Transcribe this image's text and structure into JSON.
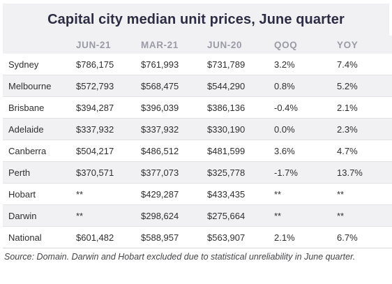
{
  "title": "Capital city median unit prices, June quarter",
  "columns": [
    "",
    "JUN-21",
    "MAR-21",
    "JUN-20",
    "QOQ",
    "YOY"
  ],
  "rows": [
    {
      "city": "Sydney",
      "jun21": "$786,175",
      "mar21": "$761,993",
      "jun20": "$731,789",
      "qoq": "3.2%",
      "yoy": "7.4%"
    },
    {
      "city": "Melbourne",
      "jun21": "$572,793",
      "mar21": "$568,475",
      "jun20": "$544,290",
      "qoq": "0.8%",
      "yoy": "5.2%"
    },
    {
      "city": "Brisbane",
      "jun21": "$394,287",
      "mar21": "$396,039",
      "jun20": "$386,136",
      "qoq": "-0.4%",
      "yoy": "2.1%"
    },
    {
      "city": "Adelaide",
      "jun21": "$337,932",
      "mar21": "$337,932",
      "jun20": "$330,190",
      "qoq": "0.0%",
      "yoy": "2.3%"
    },
    {
      "city": "Canberra",
      "jun21": "$504,217",
      "mar21": "$486,512",
      "jun20": "$481,599",
      "qoq": "3.6%",
      "yoy": "4.7%"
    },
    {
      "city": "Perth",
      "jun21": "$370,571",
      "mar21": "$377,073",
      "jun20": "$325,778",
      "qoq": "-1.7%",
      "yoy": "13.7%"
    },
    {
      "city": "Hobart",
      "jun21": "**",
      "mar21": "$429,287",
      "jun20": "$433,435",
      "qoq": "**",
      "yoy": "**"
    },
    {
      "city": "Darwin",
      "jun21": "**",
      "mar21": "$298,624",
      "jun20": "$275,664",
      "qoq": "**",
      "yoy": "**"
    },
    {
      "city": "National",
      "jun21": "$601,482",
      "mar21": "$588,957",
      "jun20": "$563,907",
      "qoq": "2.1%",
      "yoy": "6.7%"
    }
  ],
  "source": "Source: Domain. Darwin and Hobart excluded due to statistical unreliability in June quarter."
}
